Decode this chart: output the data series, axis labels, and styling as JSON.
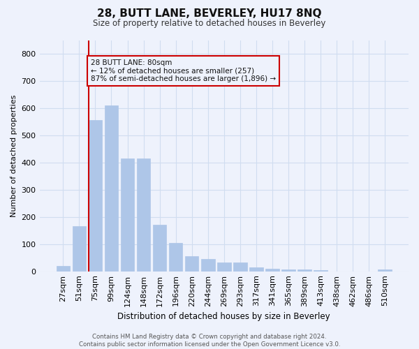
{
  "title": "28, BUTT LANE, BEVERLEY, HU17 8NQ",
  "subtitle": "Size of property relative to detached houses in Beverley",
  "xlabel": "Distribution of detached houses by size in Beverley",
  "ylabel": "Number of detached properties",
  "categories": [
    "27sqm",
    "51sqm",
    "75sqm",
    "99sqm",
    "124sqm",
    "148sqm",
    "172sqm",
    "196sqm",
    "220sqm",
    "244sqm",
    "269sqm",
    "293sqm",
    "317sqm",
    "341sqm",
    "365sqm",
    "389sqm",
    "413sqm",
    "438sqm",
    "462sqm",
    "486sqm",
    "510sqm"
  ],
  "values": [
    20,
    165,
    555,
    610,
    415,
    415,
    170,
    105,
    55,
    45,
    33,
    32,
    15,
    10,
    8,
    8,
    5,
    0,
    0,
    0,
    7
  ],
  "bar_color": "#aec6e8",
  "bar_edgecolor": "#aec6e8",
  "grid_color": "#d0ddf0",
  "background_color": "#eef2fc",
  "vline_color": "#cc0000",
  "annotation_text": "28 BUTT LANE: 80sqm\n← 12% of detached houses are smaller (257)\n87% of semi-detached houses are larger (1,896) →",
  "annotation_box_color": "#cc0000",
  "ylim": [
    0,
    850
  ],
  "yticks": [
    0,
    100,
    200,
    300,
    400,
    500,
    600,
    700,
    800
  ],
  "footer": "Contains HM Land Registry data © Crown copyright and database right 2024.\nContains public sector information licensed under the Open Government Licence v3.0."
}
